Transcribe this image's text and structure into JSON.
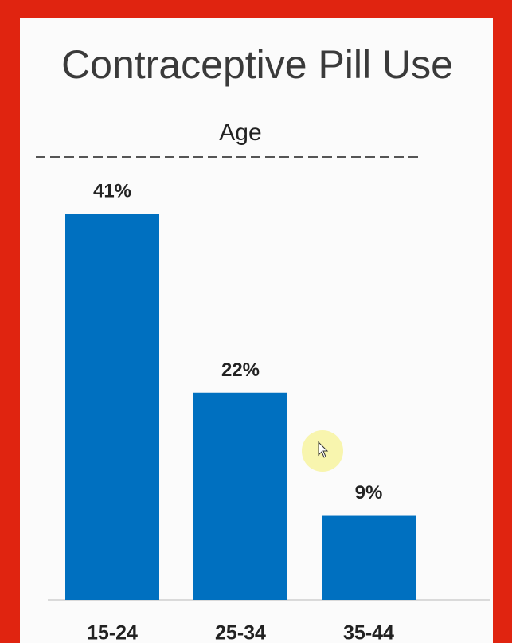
{
  "chart_data": {
    "type": "bar",
    "title": "Contraceptive Pill Use",
    "subtitle": "Age",
    "categories": [
      "15-24",
      "25-34",
      "35-44"
    ],
    "values": [
      41,
      22,
      9
    ],
    "value_labels": [
      "41%",
      "22%",
      "9%"
    ],
    "color": "#0070c0"
  }
}
